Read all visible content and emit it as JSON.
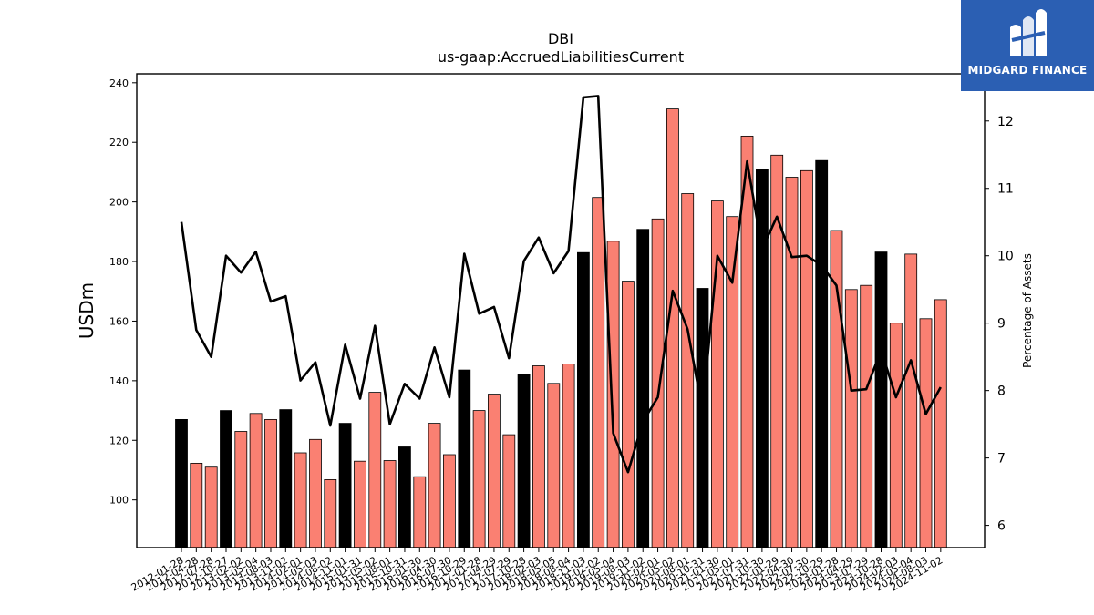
{
  "chart_data": {
    "type": "bar",
    "title": "DBI",
    "subtitle": "us-gaap:AccruedLiabilitiesCurrent",
    "ylabel": "USDm",
    "y2label": "Percentage of Assets",
    "ylim": [
      84,
      243
    ],
    "y2lim": [
      5.67,
      12.7
    ],
    "yticks": [
      "100",
      "120",
      "140",
      "160",
      "180",
      "200",
      "220",
      "240"
    ],
    "y2ticks": [
      "6",
      "7",
      "8",
      "9",
      "10",
      "11",
      "12"
    ],
    "categories": [
      "2012-01-28",
      "2012-04-28",
      "2012-07-28",
      "2012-10-27",
      "2013-02-02",
      "2013-05-04",
      "2013-08-03",
      "2013-11-02",
      "2014-02-01",
      "2014-05-03",
      "2014-08-02",
      "2014-11-01",
      "2015-01-31",
      "2015-05-02",
      "2015-08-01",
      "2015-10-31",
      "2016-01-30",
      "2016-04-30",
      "2016-07-30",
      "2016-10-29",
      "2017-01-28",
      "2017-04-29",
      "2017-07-29",
      "2017-10-28",
      "2018-02-03",
      "2018-05-05",
      "2018-08-04",
      "2018-11-03",
      "2019-02-02",
      "2019-05-04",
      "2019-08-03",
      "2019-11-02",
      "2020-02-01",
      "2020-05-02",
      "2020-08-01",
      "2020-10-31",
      "2021-01-30",
      "2021-05-01",
      "2021-07-31",
      "2021-10-30",
      "2022-01-29",
      "2022-04-30",
      "2022-07-30",
      "2022-10-29",
      "2023-01-28",
      "2023-04-29",
      "2023-07-29",
      "2023-10-28",
      "2024-02-03",
      "2024-05-04",
      "2024-08-03",
      "2024-11-02"
    ],
    "series": [
      {
        "values": [
          127,
          112.3,
          111,
          130,
          123,
          129,
          127,
          130.3,
          115.8,
          120.3,
          106.8,
          125.7,
          113,
          136.1,
          113.2,
          117.8,
          107.8,
          125.7,
          115.2,
          143.6,
          130,
          135.5,
          121.9,
          142,
          145,
          139.1,
          145.6,
          183,
          201.5,
          186.8,
          173.4,
          190.8,
          194.3,
          231.2,
          202.8,
          171,
          200.3,
          195.1,
          222.1,
          211,
          215.7,
          208.3,
          210.5,
          213.9,
          190.4,
          170.6,
          172,
          183.2,
          159.3,
          182.5,
          160.8,
          167.2
        ]
      },
      {
        "values": [
          10.5,
          8.9,
          8.5,
          10,
          9.75,
          10.06,
          9.32,
          9.4,
          8.15,
          8.42,
          7.48,
          8.68,
          7.88,
          8.96,
          7.5,
          8.1,
          7.88,
          8.64,
          7.9,
          10.03,
          9.14,
          9.24,
          8.48,
          9.92,
          10.27,
          9.74,
          10.07,
          12.35,
          12.37,
          7.37,
          6.79,
          7.54,
          7.9,
          9.48,
          8.91,
          7.7,
          10,
          9.6,
          11.4,
          10.1,
          10.58,
          9.98,
          10,
          9.86,
          9.56,
          8,
          8.02,
          8.6,
          7.9,
          8.45,
          7.65,
          8.05
        ]
      }
    ],
    "black_bars": [
      "2012-01-28",
      "2012-10-27",
      "2013-11-02",
      "2014-11-01",
      "2015-10-31",
      "2016-10-29",
      "2017-10-28",
      "2018-11-03",
      "2019-11-02",
      "2020-10-31",
      "2021-10-30",
      "2022-10-29",
      "2023-10-28"
    ],
    "colors": {
      "bar": "#fa8072",
      "bar_highlight": "#000000",
      "line": "#000000"
    }
  },
  "logo": {
    "text": "MIDGARD FINANCE",
    "icon": "midgard-logo-icon",
    "color": "#2b5fb3"
  }
}
